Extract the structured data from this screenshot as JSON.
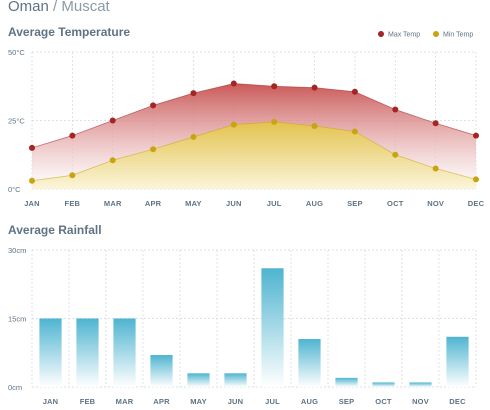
{
  "header": {
    "country": "Oman",
    "separator": "/",
    "city": "Muscat"
  },
  "colors": {
    "max_temp": "#a52424",
    "min_temp": "#c8a510",
    "max_fill_top": "#c85050",
    "min_fill_top": "#e2c44a",
    "rain_bar_top": "#4eb4d0",
    "grid": "#d0d6dc",
    "axis_text": "#5f7384"
  },
  "chart_data": [
    {
      "type": "area",
      "title": "Average Temperature",
      "categories": [
        "JAN",
        "FEB",
        "MAR",
        "APR",
        "MAY",
        "JUN",
        "JUL",
        "AUG",
        "SEP",
        "OCT",
        "NOV",
        "DEC"
      ],
      "y_ticks": [
        "50°C",
        "25°C",
        "0°C"
      ],
      "ylim": [
        0,
        50
      ],
      "grid": true,
      "legend_position": "top-right",
      "series": [
        {
          "name": "Max Temp",
          "values": [
            15,
            19.5,
            25,
            30.5,
            35,
            38.5,
            37.5,
            37,
            35.5,
            29,
            24,
            19.5
          ]
        },
        {
          "name": "Min Temp",
          "values": [
            3,
            5,
            10.5,
            14.5,
            19,
            23.5,
            24.5,
            23,
            21,
            12.5,
            7.5,
            3.5
          ]
        }
      ]
    },
    {
      "type": "bar",
      "title": "Average Rainfall",
      "categories": [
        "JAN",
        "FEB",
        "MAR",
        "APR",
        "MAY",
        "JUN",
        "JUL",
        "AUG",
        "SEP",
        "OCT",
        "NOV",
        "DEC"
      ],
      "y_ticks": [
        "30cm",
        "15cm",
        "0cm"
      ],
      "ylim": [
        0,
        30
      ],
      "grid": true,
      "values": [
        15,
        15,
        15,
        7,
        3,
        3,
        26,
        10.5,
        2,
        1,
        1,
        11
      ]
    }
  ]
}
